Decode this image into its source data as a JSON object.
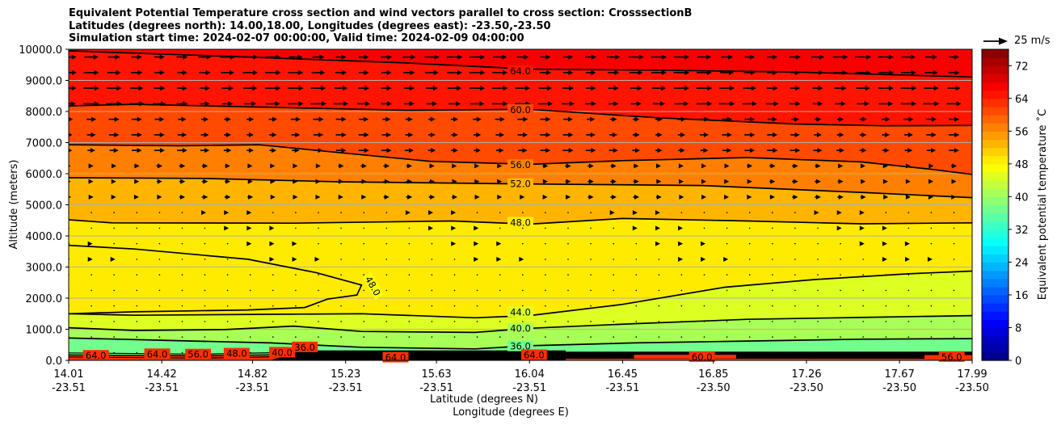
{
  "chart_data": {
    "type": "contour",
    "title": [
      "Equivalent Potential Temperature cross section and wind vectors parallel to cross section: CrosssectionB",
      "Latitudes (degrees north): 14.00,18.00, Longitudes (degrees east): -23.50,-23.50",
      "Simulation start time: 2024-02-07 00:00:00, Valid time: 2024-02-09 04:00:00"
    ],
    "ylabel": "Altitude (meters)",
    "xlabel_lat": "Latitude (degrees N)",
    "xlabel_lon": "Longitude (degrees E)",
    "ylim": [
      0,
      10000
    ],
    "xlim": [
      14.01,
      17.99
    ],
    "y_ticks": [
      {
        "value": 0,
        "label": "0.0"
      },
      {
        "value": 1000,
        "label": "1000.0"
      },
      {
        "value": 2000,
        "label": "2000.0"
      },
      {
        "value": 3000,
        "label": "3000.0"
      },
      {
        "value": 4000,
        "label": "4000.0"
      },
      {
        "value": 5000,
        "label": "5000.0"
      },
      {
        "value": 6000,
        "label": "6000.0"
      },
      {
        "value": 7000,
        "label": "7000.0"
      },
      {
        "value": 8000,
        "label": "8000.0"
      },
      {
        "value": 9000,
        "label": "9000.0"
      },
      {
        "value": 10000,
        "label": "10000.0"
      }
    ],
    "x_ticks": [
      {
        "lat": 14.01,
        "lat_label": "14.01",
        "lon_label": "-23.51"
      },
      {
        "lat": 14.42,
        "lat_label": "14.42",
        "lon_label": "-23.51"
      },
      {
        "lat": 14.82,
        "lat_label": "14.82",
        "lon_label": "-23.51"
      },
      {
        "lat": 15.23,
        "lat_label": "15.23",
        "lon_label": "-23.51"
      },
      {
        "lat": 15.63,
        "lat_label": "15.63",
        "lon_label": "-23.51"
      },
      {
        "lat": 16.04,
        "lat_label": "16.04",
        "lon_label": "-23.51"
      },
      {
        "lat": 16.45,
        "lat_label": "16.45",
        "lon_label": "-23.51"
      },
      {
        "lat": 16.85,
        "lat_label": "16.85",
        "lon_label": "-23.50"
      },
      {
        "lat": 17.26,
        "lat_label": "17.26",
        "lon_label": "-23.50"
      },
      {
        "lat": 17.67,
        "lat_label": "17.67",
        "lon_label": "-23.50"
      },
      {
        "lat": 17.99,
        "lat_label": "17.99",
        "lon_label": "-23.50"
      }
    ],
    "colorbar": {
      "label": "Equivalent potential temperature $^\\circ$C",
      "label_text": "Equivalent potential temperature ˚C",
      "min": 0,
      "max": 76,
      "step": 2,
      "ticks": [
        "0",
        "8",
        "16",
        "24",
        "32",
        "40",
        "48",
        "56",
        "64",
        "72"
      ]
    },
    "wind_key": {
      "label": "25 m/s",
      "speed": 25
    },
    "contours": [
      {
        "level": "64.0",
        "points": [
          [
            14.01,
            9950
          ],
          [
            14.8,
            9750
          ],
          [
            15.5,
            9560
          ],
          [
            16.04,
            9360
          ],
          [
            16.6,
            9330
          ],
          [
            17.2,
            9270
          ],
          [
            17.99,
            9110
          ]
        ],
        "label_at": [
          16.0,
          9300
        ]
      },
      {
        "level": "60.0",
        "points": [
          [
            14.01,
            8180
          ],
          [
            14.3,
            8230
          ],
          [
            14.8,
            8150
          ],
          [
            15.5,
            8040
          ],
          [
            16.04,
            8070
          ],
          [
            16.6,
            7800
          ],
          [
            17.2,
            7600
          ],
          [
            17.6,
            7540
          ],
          [
            17.99,
            7550
          ]
        ],
        "label_at": [
          16.0,
          8050
        ]
      },
      {
        "level": "56.0",
        "points": [
          [
            14.01,
            6930
          ],
          [
            14.5,
            6900
          ],
          [
            14.85,
            6930
          ],
          [
            15.2,
            6680
          ],
          [
            15.6,
            6400
          ],
          [
            16.04,
            6300
          ],
          [
            16.45,
            6420
          ],
          [
            17.0,
            6520
          ],
          [
            17.5,
            6380
          ],
          [
            17.8,
            6150
          ],
          [
            17.99,
            5980
          ]
        ],
        "label_at": [
          16.0,
          6280
        ]
      },
      {
        "level": "52.0",
        "points": [
          [
            14.01,
            5870
          ],
          [
            14.6,
            5850
          ],
          [
            15.2,
            5740
          ],
          [
            16.04,
            5670
          ],
          [
            16.8,
            5620
          ],
          [
            17.5,
            5400
          ],
          [
            17.99,
            5230
          ]
        ],
        "label_at": [
          16.0,
          5670
        ]
      },
      {
        "level": "48.0",
        "points": [
          [
            14.01,
            4520
          ],
          [
            14.2,
            4420
          ],
          [
            15.0,
            4410
          ],
          [
            15.7,
            4480
          ],
          [
            16.04,
            4380
          ],
          [
            16.45,
            4560
          ],
          [
            17.0,
            4480
          ],
          [
            17.5,
            4390
          ],
          [
            17.99,
            4420
          ]
        ],
        "label_at": [
          16.0,
          4430
        ]
      },
      {
        "level": "48.0",
        "points": [
          [
            14.01,
            3700
          ],
          [
            14.3,
            3580
          ],
          [
            14.8,
            3250
          ],
          [
            15.1,
            2820
          ],
          [
            15.3,
            2420
          ],
          [
            15.28,
            2100
          ],
          [
            15.15,
            1970
          ],
          [
            15.05,
            1700
          ],
          [
            14.8,
            1620
          ],
          [
            14.3,
            1560
          ],
          [
            14.01,
            1500
          ]
        ],
        "label_at": [
          15.35,
          2390
        ],
        "label_rot": 60
      },
      {
        "level": "44.0",
        "points": [
          [
            14.01,
            1500
          ],
          [
            14.3,
            1450
          ],
          [
            14.9,
            1480
          ],
          [
            15.3,
            1500
          ],
          [
            15.8,
            1370
          ],
          [
            16.04,
            1440
          ],
          [
            16.45,
            1800
          ],
          [
            16.9,
            2350
          ],
          [
            17.3,
            2600
          ],
          [
            17.7,
            2780
          ],
          [
            17.99,
            2870
          ]
        ],
        "label_at": [
          16.0,
          1550
        ]
      },
      {
        "level": "40.0",
        "points": [
          [
            14.01,
            1050
          ],
          [
            14.3,
            960
          ],
          [
            14.7,
            990
          ],
          [
            15.0,
            1100
          ],
          [
            15.3,
            930
          ],
          [
            15.8,
            900
          ],
          [
            16.04,
            1030
          ],
          [
            16.5,
            1180
          ],
          [
            17.0,
            1320
          ],
          [
            17.5,
            1380
          ],
          [
            17.99,
            1440
          ]
        ],
        "label_at": [
          16.0,
          1020
        ]
      },
      {
        "level": "36.0",
        "points": [
          [
            14.01,
            720
          ],
          [
            14.4,
            650
          ],
          [
            14.9,
            560
          ],
          [
            15.3,
            420
          ],
          [
            15.8,
            370
          ],
          [
            16.04,
            470
          ],
          [
            16.5,
            560
          ],
          [
            17.0,
            620
          ],
          [
            17.5,
            680
          ],
          [
            17.99,
            700
          ]
        ],
        "label_at": [
          16.0,
          450
        ]
      }
    ],
    "surface_labels": [
      {
        "text": "64.0",
        "lat": 14.13,
        "alt": 150
      },
      {
        "text": "64.0",
        "lat": 14.4,
        "alt": 200
      },
      {
        "text": "56.0",
        "lat": 14.58,
        "alt": 190
      },
      {
        "text": "48.0",
        "lat": 14.75,
        "alt": 220
      },
      {
        "text": "40.0",
        "lat": 14.95,
        "alt": 250
      },
      {
        "text": "36.0",
        "lat": 15.05,
        "alt": 420
      },
      {
        "text": "64.0",
        "lat": 15.45,
        "alt": 90
      },
      {
        "text": "64.0",
        "lat": 16.06,
        "alt": 170
      },
      {
        "text": "60.0",
        "lat": 16.8,
        "alt": 110
      },
      {
        "text": "56.0",
        "lat": 17.9,
        "alt": 110
      }
    ]
  }
}
